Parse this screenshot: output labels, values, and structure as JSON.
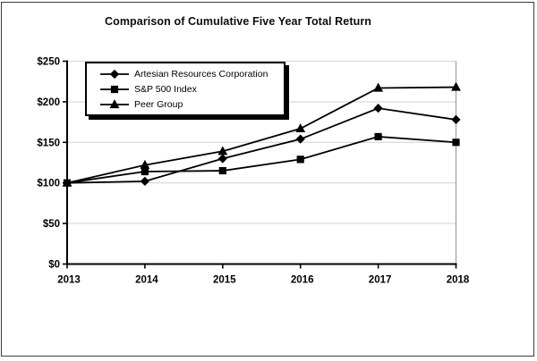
{
  "chart_data": {
    "type": "line",
    "title": "Comparison of Cumulative Five Year Total Return",
    "x_labels": [
      "2013",
      "2014",
      "2015",
      "2016",
      "2017",
      "2018"
    ],
    "xlabel": "",
    "ylabel": "",
    "ylim": [
      0,
      250
    ],
    "y_tick_step": 50,
    "y_tick_prefix": "$",
    "y_tick_labels": [
      "$0",
      "$50",
      "$100",
      "$150",
      "$200",
      "$250"
    ],
    "grid": true,
    "legend_position": "top-left-inside",
    "series": [
      {
        "name": "Artesian Resources Corporation",
        "marker": "diamond",
        "color": "#000000",
        "values": [
          100,
          102,
          130,
          154,
          192,
          178
        ]
      },
      {
        "name": "S&P 500 Index",
        "marker": "square",
        "color": "#000000",
        "values": [
          100,
          114,
          115,
          129,
          157,
          150
        ]
      },
      {
        "name": "Peer Group",
        "marker": "triangle",
        "color": "#000000",
        "values": [
          100,
          122,
          139,
          167,
          217,
          218
        ]
      }
    ],
    "colors": {
      "gridline": "#d6d6d6",
      "plot_border": "#9e9e9e",
      "axis": "#000000",
      "series": "#000000"
    }
  }
}
